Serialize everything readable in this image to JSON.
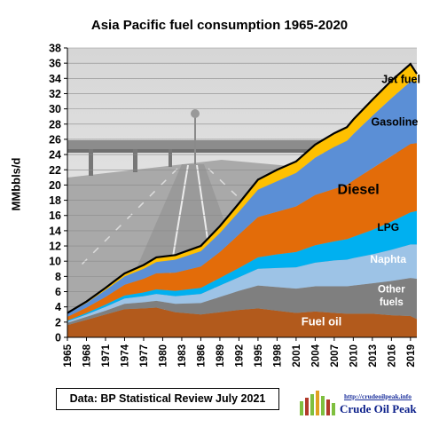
{
  "chart_data": {
    "type": "area",
    "title": "Asia Pacific fuel consumption  1965-2020",
    "ylabel": "MMbbls/d",
    "ylim": [
      0,
      38
    ],
    "yticks": [
      0,
      2,
      4,
      6,
      8,
      10,
      12,
      14,
      16,
      18,
      20,
      22,
      24,
      26,
      28,
      30,
      32,
      34,
      36,
      38
    ],
    "xlim": [
      1965,
      2020
    ],
    "xticks": [
      1965,
      1968,
      1971,
      1974,
      1977,
      1980,
      1983,
      1986,
      1989,
      1992,
      1995,
      1998,
      2001,
      2004,
      2007,
      2010,
      2013,
      2016,
      2019
    ],
    "grid": "horizontal",
    "stacked": true,
    "x": [
      1965,
      1968,
      1971,
      1974,
      1977,
      1979,
      1982,
      1986,
      1989,
      1992,
      1995,
      1998,
      2001,
      2004,
      2007,
      2009,
      2010,
      2013,
      2016,
      2019,
      2020
    ],
    "series": [
      {
        "name": "Fuel oil",
        "color": "#b25a1c",
        "values": [
          1.6,
          2.3,
          3.0,
          3.7,
          3.8,
          3.9,
          3.3,
          3.0,
          3.3,
          3.6,
          3.8,
          3.5,
          3.2,
          3.4,
          3.2,
          3.1,
          3.1,
          3.1,
          2.9,
          2.8,
          2.4
        ]
      },
      {
        "name": "Other fuels",
        "color": "#7f7f7f",
        "values": [
          0.3,
          0.4,
          0.5,
          0.7,
          0.8,
          0.9,
          1.1,
          1.5,
          2.0,
          2.5,
          3.0,
          3.1,
          3.2,
          3.3,
          3.5,
          3.6,
          3.7,
          4.0,
          4.5,
          5.0,
          5.3
        ]
      },
      {
        "name": "Naphta",
        "color": "#9dc3e6",
        "values": [
          0.2,
          0.3,
          0.5,
          0.7,
          0.8,
          0.9,
          1.0,
          1.2,
          1.5,
          1.8,
          2.2,
          2.5,
          2.8,
          3.1,
          3.4,
          3.5,
          3.6,
          3.8,
          4.1,
          4.4,
          4.5
        ]
      },
      {
        "name": "LPG",
        "color": "#00b0f0",
        "values": [
          0.1,
          0.2,
          0.3,
          0.4,
          0.5,
          0.6,
          0.7,
          0.8,
          1.0,
          1.2,
          1.5,
          1.8,
          2.0,
          2.3,
          2.5,
          2.7,
          2.8,
          3.2,
          3.7,
          4.2,
          4.4
        ]
      },
      {
        "name": "Diesel",
        "color": "#e36c09",
        "values": [
          0.5,
          0.7,
          1.0,
          1.4,
          1.8,
          2.1,
          2.4,
          2.8,
          3.4,
          4.4,
          5.3,
          5.6,
          6.0,
          6.6,
          6.9,
          7.1,
          7.4,
          8.1,
          8.6,
          9.0,
          8.9
        ]
      },
      {
        "name": "Gasoline",
        "color": "#5b8fd6",
        "values": [
          0.4,
          0.6,
          0.9,
          1.1,
          1.3,
          1.5,
          1.7,
          2.0,
          2.5,
          3.0,
          3.6,
          4.0,
          4.4,
          4.9,
          5.5,
          5.8,
          6.1,
          6.9,
          7.6,
          8.2,
          7.9
        ]
      },
      {
        "name": "Jet fuel",
        "color": "#ffc000",
        "values": [
          0.1,
          0.2,
          0.3,
          0.4,
          0.5,
          0.6,
          0.6,
          0.7,
          0.9,
          1.1,
          1.3,
          1.5,
          1.5,
          1.7,
          1.8,
          1.8,
          1.9,
          2.1,
          2.3,
          2.3,
          1.2
        ]
      }
    ],
    "annotations": [
      {
        "text": "Jet fuel",
        "x": 2017.5,
        "y": 33.4
      },
      {
        "text": "Gasoline",
        "x": 2016.5,
        "y": 27.8
      },
      {
        "text": "Diesel",
        "x": 2010.8,
        "y": 18.8
      },
      {
        "text": "LPG",
        "x": 2015.5,
        "y": 14.0
      },
      {
        "text": "Naphta",
        "x": 2015.5,
        "y": 9.8
      },
      {
        "text": "Other",
        "x": 2016,
        "y": 5.9
      },
      {
        "text": "fuels",
        "x": 2016,
        "y": 4.2
      },
      {
        "text": "Fuel oil",
        "x": 2005,
        "y": 1.6
      }
    ]
  },
  "source_text": "Data: BP Statistical Review July 2021",
  "logo": {
    "url": "http://crudeoilpeak.info",
    "name": "Crude Oil Peak"
  }
}
